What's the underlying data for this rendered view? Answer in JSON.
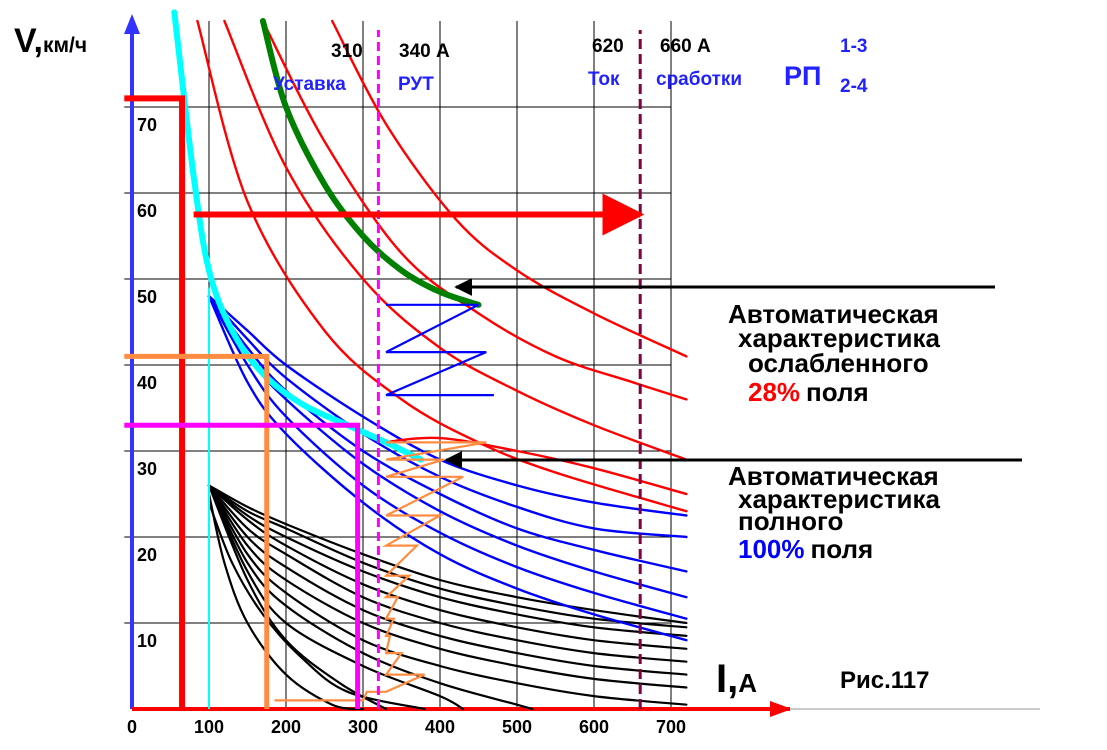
{
  "chart_data": {
    "type": "line",
    "title": "",
    "figure_label": "Рис.117",
    "ylabel_main": "V,",
    "ylabel_unit": "км/ч",
    "xlabel_main": "I,",
    "xlabel_unit": "А",
    "xlim": [
      0,
      750
    ],
    "ylim": [
      0,
      80
    ],
    "x_ticks": [
      0,
      100,
      200,
      300,
      400,
      500,
      600,
      700
    ],
    "y_ticks": [
      10,
      20,
      30,
      40,
      50,
      60,
      70
    ],
    "grid": true,
    "colors": {
      "axis": "#3333ff",
      "grid": "#000000",
      "weakened": "#ff0000",
      "full": "#0000ff",
      "starting": "#000000",
      "cyan": "#00ffff",
      "green": "#008000",
      "magenta": "#ff00ff",
      "orange": "#ff8c40",
      "maroon": "#800040"
    },
    "annotations": {
      "setting_low": "310",
      "setting_high": "340 А",
      "setting_text": "Уставка",
      "rut_text": "РУТ",
      "trip_low": "620",
      "trip_high": "660 А",
      "trip_text_1": "Ток",
      "trip_text_2": "сработки",
      "rp_text": "РП",
      "rp_sup": "1-3",
      "rp_sub": "2-4",
      "weak_line1": "Автоматическая",
      "weak_line2": "характеристика",
      "weak_line3": "ослабленного",
      "weak_pct": "28%",
      "weak_field": "поля",
      "full_line1": "Автоматическая",
      "full_line2": "характеристика",
      "full_line3": "полного",
      "full_pct": "100%",
      "full_field": "поля"
    },
    "reference_lines": {
      "cyan_vertical_x": 100,
      "rut_x": 320,
      "trip_x": 660
    },
    "speed_current_lines": [
      {
        "name": "",
        "v": 71,
        "i": 65
      },
      {
        "name": "",
        "v": 41,
        "i": 175
      },
      {
        "name": "",
        "v": 33,
        "i": 293
      }
    ],
    "series": [
      {
        "name": "",
        "group": "weakened",
        "x": [
          85,
          150,
          250,
          350,
          450,
          550,
          720
        ],
        "y": [
          80,
          59,
          44,
          36,
          31,
          27.5,
          23
        ]
      },
      {
        "name": "",
        "group": "weakened",
        "x": [
          120,
          200,
          300,
          400,
          500,
          600,
          720
        ],
        "y": [
          80,
          63,
          50,
          42,
          37,
          33,
          29
        ]
      },
      {
        "name": "",
        "group": "weakened",
        "x": [
          170,
          250,
          350,
          450,
          550,
          650,
          720
        ],
        "y": [
          80,
          66,
          53,
          46,
          41,
          38,
          36
        ]
      },
      {
        "name": "",
        "group": "weakened",
        "x": [
          260,
          330,
          420,
          500,
          600,
          720
        ],
        "y": [
          80,
          68,
          57,
          51,
          46,
          41
        ]
      },
      {
        "name": "",
        "group": "weakened",
        "x": [
          325,
          400,
          500,
          600,
          720
        ],
        "y": [
          31,
          31.5,
          30,
          28,
          25
        ]
      },
      {
        "name": "",
        "group": "full",
        "x": [
          100,
          150,
          200,
          300,
          400,
          500,
          600,
          720
        ],
        "y": [
          48,
          38,
          32,
          24,
          18,
          14,
          11,
          8
        ]
      },
      {
        "name": "",
        "group": "full",
        "x": [
          100,
          150,
          200,
          300,
          400,
          500,
          600,
          720
        ],
        "y": [
          48,
          40,
          34,
          26,
          20.5,
          16.5,
          13.5,
          10.5
        ]
      },
      {
        "name": "",
        "group": "full",
        "x": [
          100,
          150,
          200,
          300,
          400,
          500,
          600,
          720
        ],
        "y": [
          48,
          41,
          36,
          28.5,
          23,
          19,
          16,
          13
        ]
      },
      {
        "name": "",
        "group": "full",
        "x": [
          100,
          150,
          200,
          300,
          400,
          500,
          600,
          720
        ],
        "y": [
          48,
          42,
          37,
          30,
          25,
          21,
          18.5,
          16
        ]
      },
      {
        "name": "",
        "group": "full",
        "x": [
          100,
          150,
          200,
          300,
          400,
          500,
          600,
          720
        ],
        "y": [
          48,
          43,
          38.5,
          32,
          27,
          23.5,
          21,
          20
        ]
      },
      {
        "name": "",
        "group": "full",
        "x": [
          100,
          150,
          200,
          300,
          400,
          500,
          600,
          720
        ],
        "y": [
          48,
          44,
          40,
          34,
          29,
          26,
          24,
          22.5
        ]
      },
      {
        "name": "",
        "group": "starting",
        "x": [
          100,
          150,
          200,
          270,
          330
        ],
        "y": [
          26,
          15,
          8,
          3,
          0
        ]
      },
      {
        "name": "",
        "group": "starting",
        "x": [
          100,
          150,
          200,
          300,
          400,
          430
        ],
        "y": [
          26,
          16,
          10,
          5,
          1.5,
          0
        ]
      },
      {
        "name": "",
        "group": "starting",
        "x": [
          100,
          150,
          200,
          300,
          400,
          500,
          520
        ],
        "y": [
          26,
          17,
          12,
          6.5,
          3,
          0.5,
          0
        ]
      },
      {
        "name": "",
        "group": "starting",
        "x": [
          100,
          150,
          200,
          300,
          400,
          500,
          600,
          720
        ],
        "y": [
          26,
          18,
          13.5,
          8,
          5,
          3,
          1.5,
          0.5
        ]
      },
      {
        "name": "",
        "group": "starting",
        "x": [
          100,
          150,
          200,
          300,
          400,
          500,
          600,
          720
        ],
        "y": [
          26,
          19,
          15,
          10,
          7,
          5,
          3.5,
          2.5
        ]
      },
      {
        "name": "",
        "group": "starting",
        "x": [
          100,
          150,
          200,
          300,
          400,
          500,
          600,
          720
        ],
        "y": [
          26,
          20,
          16.5,
          11.5,
          8.5,
          6.5,
          5,
          4
        ]
      },
      {
        "name": "",
        "group": "starting",
        "x": [
          100,
          150,
          200,
          300,
          400,
          500,
          600,
          720
        ],
        "y": [
          26,
          21,
          18,
          13,
          10,
          8,
          6.5,
          5.5
        ]
      },
      {
        "name": "",
        "group": "starting",
        "x": [
          100,
          150,
          200,
          300,
          400,
          500,
          600,
          720
        ],
        "y": [
          26,
          22,
          19,
          14.5,
          11.5,
          9.5,
          8,
          7
        ]
      },
      {
        "name": "",
        "group": "starting",
        "x": [
          100,
          150,
          200,
          300,
          400,
          500,
          600,
          720
        ],
        "y": [
          26,
          22.5,
          20,
          16,
          13,
          11,
          9.5,
          8.5
        ]
      },
      {
        "name": "",
        "group": "starting",
        "x": [
          100,
          150,
          200,
          300,
          400,
          500,
          600,
          720
        ],
        "y": [
          26,
          23,
          21,
          17,
          14,
          12,
          10.5,
          9.5
        ]
      },
      {
        "name": "",
        "group": "starting",
        "x": [
          100,
          150,
          200,
          300,
          400,
          500,
          600,
          720
        ],
        "y": [
          26,
          23.5,
          21.5,
          18,
          15,
          13,
          11.5,
          10
        ]
      },
      {
        "name": "",
        "group": "starting",
        "x": [
          100,
          120,
          150,
          200,
          260,
          300
        ],
        "y": [
          25,
          17,
          10,
          4,
          0.5,
          0
        ]
      },
      {
        "name": "",
        "group": "starting",
        "x": [
          100,
          130,
          170,
          220,
          280,
          380
        ],
        "y": [
          24,
          17,
          11,
          6,
          2,
          0
        ]
      },
      {
        "name": "",
        "group": "cyan",
        "x": [
          55,
          80,
          100,
          130,
          170,
          220,
          280,
          330,
          375
        ],
        "y": [
          81,
          62,
          51,
          44,
          39,
          35.5,
          33,
          31,
          29
        ]
      },
      {
        "name": "",
        "group": "green",
        "x": [
          170,
          200,
          250,
          300,
          350,
          400,
          450
        ],
        "y": [
          80,
          70,
          61,
          55,
          51,
          48.5,
          47
        ]
      }
    ],
    "staircases": [
      {
        "name": "",
        "group": "full",
        "x": [
          330,
          450,
          330,
          460,
          330,
          470
        ],
        "y": [
          47,
          47,
          41.5,
          41.5,
          36.5,
          36.5
        ]
      },
      {
        "name": "",
        "group": "orange",
        "x": [
          330,
          460,
          330,
          405,
          330,
          430,
          330,
          400,
          330,
          370,
          330,
          360,
          330,
          345,
          330,
          340,
          330,
          335,
          330,
          350,
          330,
          380,
          330,
          305,
          300,
          185
        ],
        "y": [
          31,
          31,
          29,
          29,
          27,
          27,
          22.5,
          22.5,
          19,
          19,
          15.5,
          15.5,
          13,
          13,
          10.5,
          10.5,
          8.5,
          8.5,
          6.5,
          6.5,
          4,
          4,
          2,
          2,
          1,
          1
        ]
      }
    ]
  }
}
